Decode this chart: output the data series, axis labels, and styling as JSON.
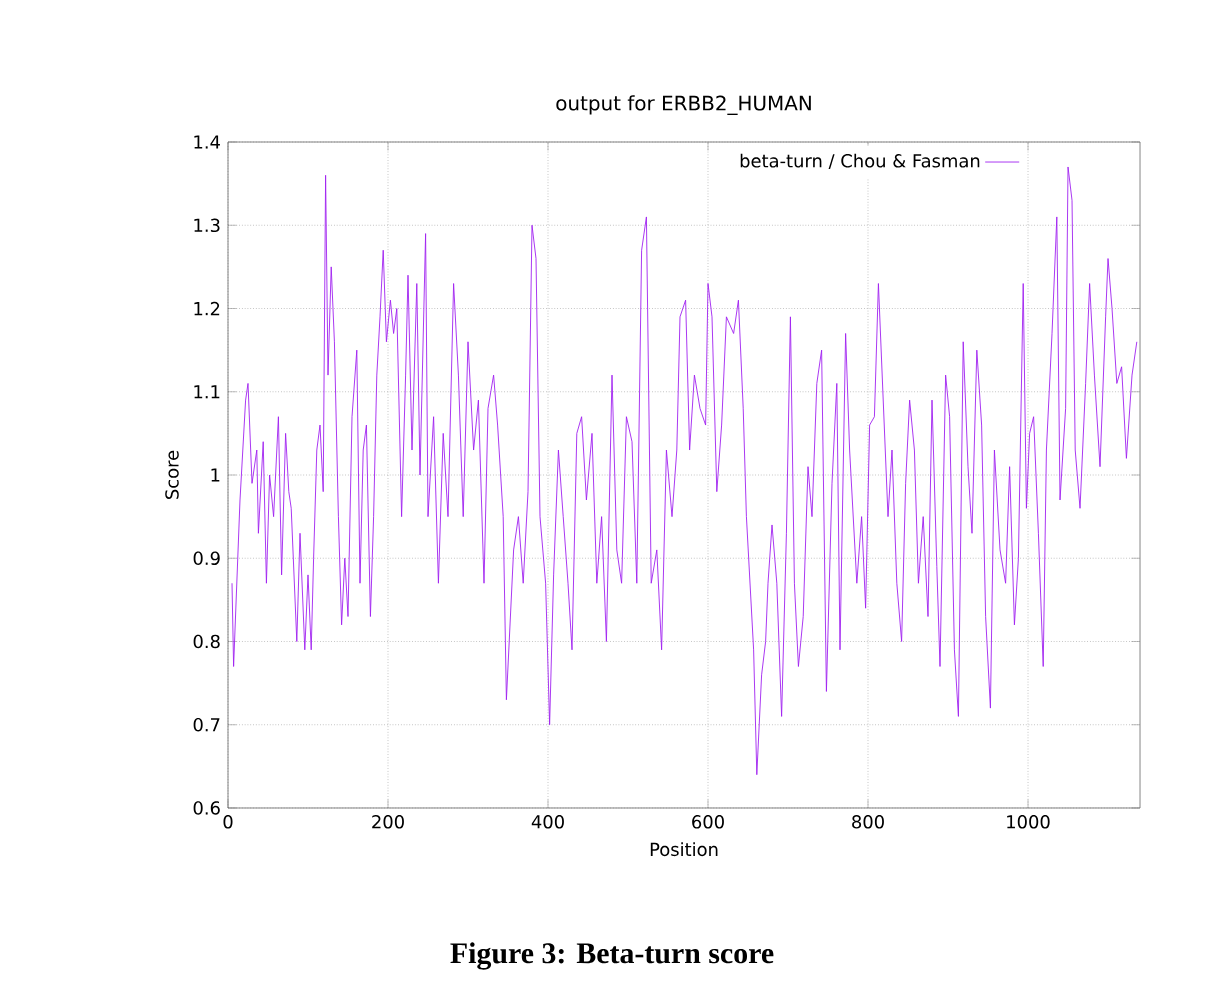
{
  "chart_data": {
    "type": "line",
    "title": "output for ERBB2_HUMAN",
    "xlabel": "Position",
    "ylabel": "Score",
    "annotations": [
      "**Figure 3: Beta-turn score**"
    ],
    "xlim": [
      0,
      1140
    ],
    "xticks": [
      0,
      200,
      400,
      600,
      800,
      1000
    ],
    "ylim": [
      0.6,
      1.4
    ],
    "yticks": [
      0.6,
      0.7,
      0.8,
      0.9,
      1,
      1.1,
      1.2,
      1.3,
      1.4
    ],
    "grid": true,
    "legend": "top right",
    "marker": "none",
    "line_style": "solid",
    "series": [
      {
        "name": "beta-turn / Chou & Fasman",
        "color": "#a020f0",
        "x": [
          5,
          7,
          15,
          22,
          25,
          30,
          36,
          38,
          44,
          48,
          52,
          57,
          63,
          67,
          72,
          76,
          79,
          86,
          90,
          96,
          100,
          104,
          107,
          111,
          115,
          119,
          122,
          125,
          129,
          133,
          138,
          142,
          146,
          150,
          155,
          161,
          165,
          169,
          173,
          178,
          182,
          186,
          190,
          194,
          198,
          203,
          207,
          211,
          217,
          222,
          225,
          230,
          236,
          240,
          247,
          250,
          257,
          263,
          269,
          275,
          282,
          288,
          294,
          300,
          307,
          313,
          320,
          325,
          332,
          337,
          344,
          348,
          357,
          363,
          369,
          375,
          380,
          385,
          390,
          397,
          402,
          407,
          413,
          419,
          425,
          430,
          436,
          442,
          448,
          455,
          461,
          467,
          473,
          480,
          486,
          492,
          498,
          505,
          511,
          517,
          523,
          529,
          536,
          542,
          548,
          555,
          561,
          565,
          572,
          577,
          583,
          590,
          597,
          600,
          605,
          611,
          617,
          623,
          632,
          638,
          644,
          648,
          657,
          661,
          667,
          672,
          675,
          680,
          686,
          692,
          698,
          703,
          708,
          713,
          719,
          725,
          730,
          736,
          742,
          748,
          755,
          761,
          765,
          772,
          777,
          786,
          792,
          797,
          802,
          808,
          813,
          819,
          825,
          830,
          836,
          842,
          847,
          852,
          858,
          863,
          869,
          875,
          880,
          886,
          890,
          897,
          902,
          908,
          913,
          919,
          925,
          930,
          936,
          942,
          947,
          953,
          958,
          965,
          972,
          977,
          983,
          988,
          994,
          998,
          1002,
          1007,
          1013,
          1019,
          1023,
          1030,
          1036,
          1040,
          1047,
          1050,
          1055,
          1059,
          1065,
          1072,
          1077,
          1083,
          1090,
          1097,
          1100,
          1105,
          1111,
          1117,
          1123,
          1130,
          1136
        ],
        "values": [
          0.87,
          0.77,
          0.97,
          1.09,
          1.11,
          0.99,
          1.03,
          0.93,
          1.04,
          0.87,
          1.0,
          0.95,
          1.07,
          0.88,
          1.05,
          0.98,
          0.96,
          0.8,
          0.93,
          0.79,
          0.88,
          0.79,
          0.9,
          1.03,
          1.06,
          0.98,
          1.36,
          1.12,
          1.25,
          1.16,
          0.95,
          0.82,
          0.9,
          0.83,
          1.07,
          1.15,
          0.87,
          1.03,
          1.06,
          0.83,
          0.95,
          1.12,
          1.19,
          1.27,
          1.16,
          1.21,
          1.17,
          1.2,
          0.95,
          1.12,
          1.24,
          1.03,
          1.23,
          1.0,
          1.29,
          0.95,
          1.07,
          0.87,
          1.05,
          0.95,
          1.23,
          1.12,
          0.95,
          1.16,
          1.03,
          1.09,
          0.87,
          1.08,
          1.12,
          1.06,
          0.95,
          0.73,
          0.91,
          0.95,
          0.87,
          0.98,
          1.3,
          1.26,
          0.95,
          0.87,
          0.7,
          0.88,
          1.03,
          0.95,
          0.87,
          0.79,
          1.05,
          1.07,
          0.97,
          1.05,
          0.87,
          0.95,
          0.8,
          1.12,
          0.91,
          0.87,
          1.07,
          1.04,
          0.87,
          1.27,
          1.31,
          0.87,
          0.91,
          0.79,
          1.03,
          0.95,
          1.03,
          1.19,
          1.21,
          1.03,
          1.12,
          1.08,
          1.06,
          1.23,
          1.19,
          0.98,
          1.06,
          1.19,
          1.17,
          1.21,
          1.08,
          0.95,
          0.79,
          0.64,
          0.76,
          0.8,
          0.87,
          0.94,
          0.87,
          0.71,
          0.93,
          1.19,
          0.87,
          0.77,
          0.83,
          1.01,
          0.95,
          1.11,
          1.15,
          0.74,
          0.99,
          1.11,
          0.79,
          1.17,
          1.03,
          0.87,
          0.95,
          0.84,
          1.06,
          1.07,
          1.23,
          1.09,
          0.95,
          1.03,
          0.87,
          0.8,
          0.99,
          1.09,
          1.03,
          0.87,
          0.95,
          0.83,
          1.09,
          0.89,
          0.77,
          1.12,
          1.07,
          0.79,
          0.71,
          1.16,
          1.01,
          0.93,
          1.15,
          1.06,
          0.83,
          0.72,
          1.03,
          0.91,
          0.87,
          1.01,
          0.82,
          0.9,
          1.23,
          0.96,
          1.05,
          1.07,
          0.93,
          0.77,
          1.03,
          1.17,
          1.31,
          0.97,
          1.08,
          1.37,
          1.33,
          1.03,
          0.96,
          1.11,
          1.23,
          1.12,
          1.01,
          1.19,
          1.26,
          1.2,
          1.11,
          1.13,
          1.02,
          1.12,
          1.16
        ]
      }
    ]
  }
}
